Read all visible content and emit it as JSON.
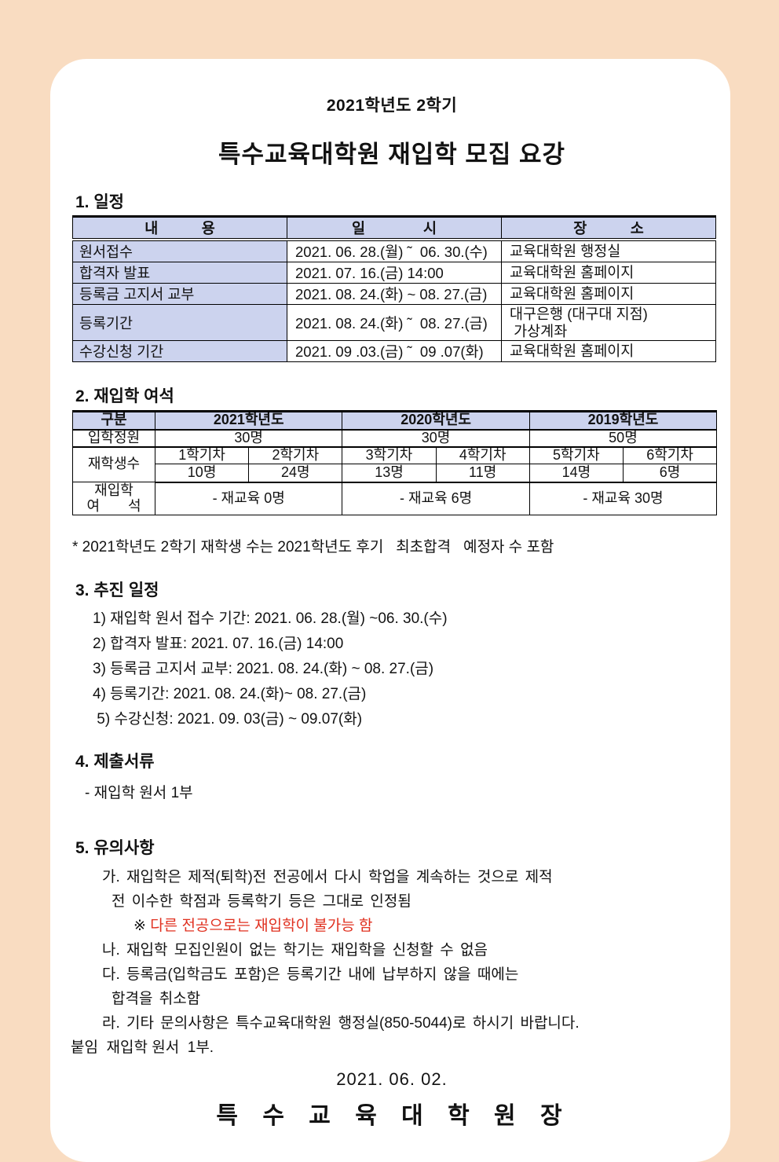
{
  "header": {
    "term": "2021학년도 2학기",
    "title": "특수교육대학원 재입학 모집 요강"
  },
  "schedule": {
    "heading": "1. 일정",
    "columns": [
      "내   용",
      "일    시",
      "장   소"
    ],
    "rows": [
      {
        "item": "원서접수",
        "datetime": "2021. 06. 28.(월) ˜  06. 30.(수)",
        "place": "교육대학원 행정실"
      },
      {
        "item": "합격자 발표",
        "datetime": "2021. 07. 16.(금) 14:00",
        "place": "교육대학원 홈페이지"
      },
      {
        "item": "등록금 고지서 교부",
        "datetime": "2021. 08. 24.(화) ~ 08. 27.(금)",
        "place": "교육대학원 홈페이지"
      },
      {
        "item": "등록기간",
        "datetime": "2021. 08. 24.(화) ˜  08. 27.(금)",
        "place": "대구은행 (대구대 지점)\n 가상계좌"
      },
      {
        "item": "수강신청 기간",
        "datetime": "2021. 09 .03.(금) ˜  09 .07(화)",
        "place": "교육대학원 홈페이지"
      }
    ]
  },
  "seats": {
    "heading": "2. 재입학 여석",
    "col_header": "구분",
    "years": [
      "2021학년도",
      "2020학년도",
      "2019학년도"
    ],
    "quota_label": "입학정원",
    "quotas": [
      "30명",
      "30명",
      "50명"
    ],
    "enrolled_label": "재학생수",
    "semesters": [
      "1학기차",
      "2학기차",
      "3학기차",
      "4학기차",
      "5학기차",
      "6학기차"
    ],
    "counts": [
      "10명",
      "24명",
      "13명",
      "11명",
      "14명",
      "6명"
    ],
    "vacancy_label": "재입학\n여  석",
    "vacancies": [
      "- 재교육 0명",
      "- 재교육 6명",
      "- 재교육 30명"
    ],
    "note": "* 2021학년도 2학기 재학생 수는 2021학년도 후기   최초합격   예정자 수 포함"
  },
  "plan": {
    "heading": "3. 추진 일정",
    "items": [
      "1) 재입학 원서 접수 기간: 2021. 06. 28.(월) ~06. 30.(수)",
      "2) 합격자 발표: 2021. 07. 16.(금) 14:00",
      "3) 등록금 고지서 교부: 2021. 08. 24.(화) ~ 08. 27.(금)",
      "4) 등록기간: 2021. 08. 24.(화)~ 08. 27.(금)",
      " 5) 수강신청: 2021. 09. 03(금) ~ 09.07(화)"
    ]
  },
  "documents": {
    "heading": "4. 제출서류",
    "item": "- 재입학 원서 1부"
  },
  "notices": {
    "heading": "5. 유의사항",
    "ga_line1": "가. 재입학은 제적(퇴학)전 전공에서 다시 학업을 계속하는 것으로 제적",
    "ga_line2": "전 이수한 학점과 등록학기 등은 그대로 인정됨",
    "warn_mark": "※ ",
    "warn_text": "다른 전공으로는 재입학이 불가능 함",
    "na_line": "나. 재입학 모집인원이 없는 학기는 재입학을 신청할 수 없음",
    "da_line1": "다. 등록금(입학금도 포함)은 등록기간 내에 납부하지 않을 때에는",
    "da_line2": "합격을 취소함",
    "ra_line": "라. 기타 문의사항은 특수교육대학원 행정실(850-5044)로 하시기 바랍니다.",
    "attachment": "붙임  재입학 원서  1부."
  },
  "footer": {
    "date": "2021. 06. 02.",
    "signature": "특 수 교 육 대 학 원 장"
  },
  "colors": {
    "page_background": "#f9dcc1",
    "card_background": "#ffffff",
    "table_header_background": "#ccd3ee",
    "warning_text": "#e0301f"
  }
}
